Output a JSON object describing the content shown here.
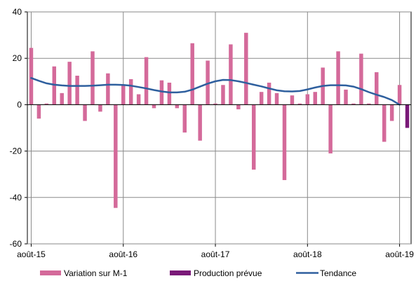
{
  "chart_data": {
    "type": "bar",
    "title": "",
    "xlabel": "",
    "ylabel": "",
    "ylim": [
      -60,
      40
    ],
    "yticks": [
      40,
      20,
      0,
      -20,
      -40,
      -60
    ],
    "grid": true,
    "legend_position": "bottom",
    "x_tick_labels": [
      "août-15",
      "août-16",
      "août-17",
      "août-18",
      "août-19"
    ],
    "x_tick_dates": [
      "2015-08",
      "2016-08",
      "2017-08",
      "2018-08",
      "2019-08"
    ],
    "months": [
      "2015-08",
      "2015-09",
      "2015-10",
      "2015-11",
      "2015-12",
      "2016-01",
      "2016-02",
      "2016-03",
      "2016-04",
      "2016-05",
      "2016-06",
      "2016-07",
      "2016-08",
      "2016-09",
      "2016-10",
      "2016-11",
      "2016-12",
      "2017-01",
      "2017-02",
      "2017-03",
      "2017-04",
      "2017-05",
      "2017-06",
      "2017-07",
      "2017-08",
      "2017-09",
      "2017-10",
      "2017-11",
      "2017-12",
      "2018-01",
      "2018-02",
      "2018-03",
      "2018-04",
      "2018-05",
      "2018-06",
      "2018-07",
      "2018-08",
      "2018-09",
      "2018-10",
      "2018-11",
      "2018-12",
      "2019-01",
      "2019-02",
      "2019-03",
      "2019-04",
      "2019-05",
      "2019-06",
      "2019-07",
      "2019-08",
      "2019-09"
    ],
    "series": [
      {
        "name": "Variation sur M-1",
        "kind": "bar",
        "color": "#d46a9a",
        "values": [
          24.5,
          -6,
          0.5,
          16.5,
          5,
          18.5,
          12.5,
          -7,
          23,
          -3,
          13.5,
          -44.5,
          8.5,
          11,
          4.5,
          20.5,
          -1.5,
          10.5,
          9.5,
          -1.5,
          -12,
          26.5,
          -15.5,
          19,
          0.5,
          8.5,
          26,
          -2,
          31,
          -28,
          5.5,
          9.5,
          5,
          -32.5,
          4,
          0.5,
          4.5,
          5.5,
          16,
          -21,
          23,
          6.5,
          0.5,
          22,
          0.5,
          14,
          -16,
          -7,
          8.5,
          null
        ]
      },
      {
        "name": "Production prévue",
        "kind": "bar",
        "color": "#7a1a78",
        "values": [
          null,
          null,
          null,
          null,
          null,
          null,
          null,
          null,
          null,
          null,
          null,
          null,
          null,
          null,
          null,
          null,
          null,
          null,
          null,
          null,
          null,
          null,
          null,
          null,
          null,
          null,
          null,
          null,
          null,
          null,
          null,
          null,
          null,
          null,
          null,
          null,
          null,
          null,
          null,
          null,
          null,
          null,
          null,
          null,
          null,
          null,
          null,
          null,
          null,
          -10
        ]
      },
      {
        "name": "Tendance",
        "kind": "line",
        "color": "#2e5f9e",
        "values": [
          11.5,
          10.3,
          9.2,
          8.6,
          8.3,
          8.1,
          8.1,
          8.1,
          8.2,
          8.4,
          8.6,
          8.6,
          8.5,
          8.2,
          7.6,
          7.0,
          6.3,
          5.7,
          5.3,
          5.3,
          5.6,
          6.5,
          7.8,
          9.1,
          10.1,
          10.7,
          10.6,
          10.1,
          9.4,
          8.6,
          7.9,
          7.0,
          6.2,
          5.8,
          5.7,
          5.9,
          6.6,
          7.4,
          8.1,
          8.4,
          8.4,
          8.3,
          7.8,
          6.7,
          5.4,
          4.3,
          3.3,
          2.0,
          0.0,
          null
        ]
      }
    ]
  }
}
